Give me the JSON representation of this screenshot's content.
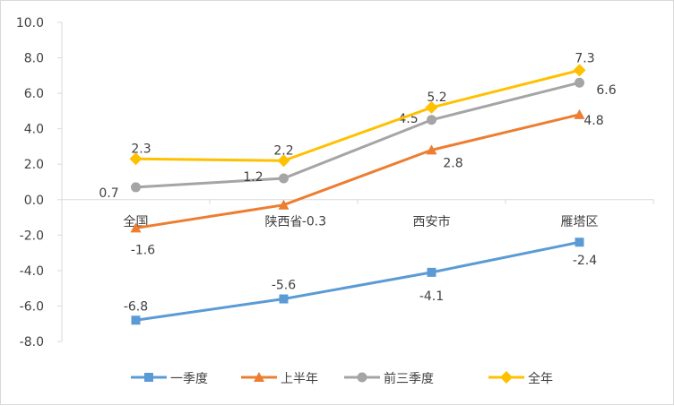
{
  "chart_data": {
    "type": "line",
    "categories": [
      "全国",
      "陕西省",
      "西安市",
      "雁塔区"
    ],
    "ylim": [
      -8,
      10
    ],
    "ytick_step": 2,
    "yticks": [
      "-8.0",
      "-6.0",
      "-4.0",
      "-2.0",
      "0.0",
      "2.0",
      "4.0",
      "6.0",
      "8.0",
      "10.0"
    ],
    "grid": false,
    "legend_position": "bottom",
    "series": [
      {
        "name": "一季度",
        "values": [
          -6.8,
          -5.6,
          -4.1,
          -2.4
        ],
        "color": "#5B9BD5",
        "marker": "square"
      },
      {
        "name": "上半年",
        "values": [
          -1.6,
          -0.3,
          2.8,
          4.8
        ],
        "color": "#ED7D31",
        "marker": "triangle"
      },
      {
        "name": "前三季度",
        "values": [
          0.7,
          1.2,
          4.5,
          6.6
        ],
        "color": "#A5A5A5",
        "marker": "circle"
      },
      {
        "name": "全年",
        "values": [
          2.3,
          2.2,
          5.2,
          7.3
        ],
        "color": "#FFC000",
        "marker": "diamond"
      }
    ]
  }
}
